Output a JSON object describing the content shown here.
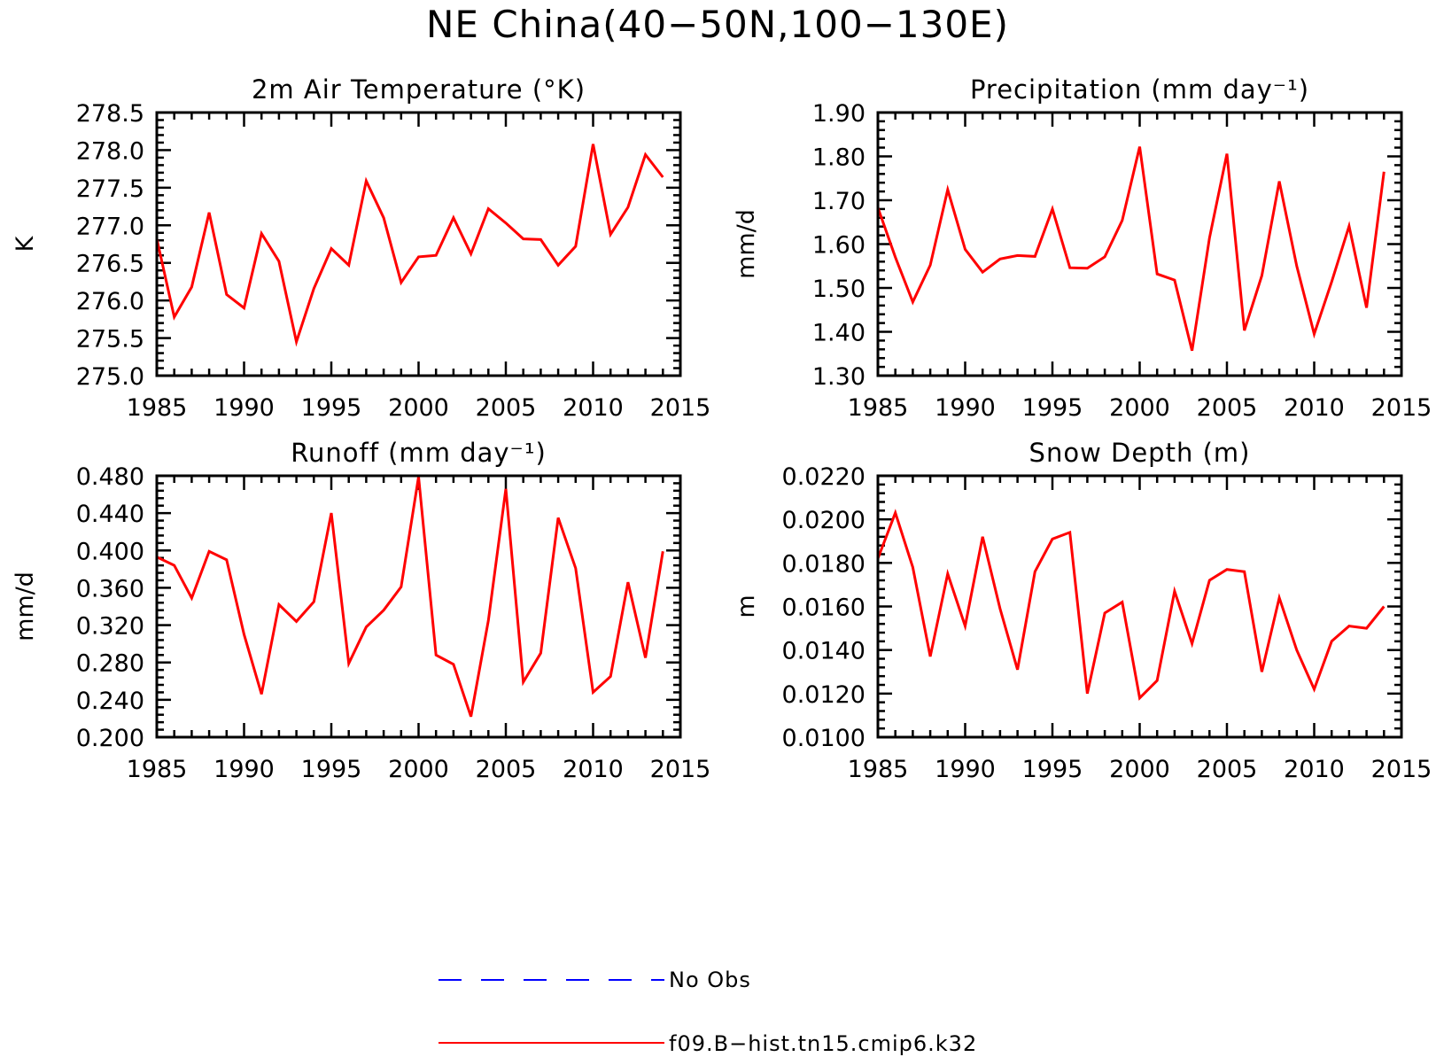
{
  "figure": {
    "title": "NE China(40−50N,100−130E)"
  },
  "legend": [
    {
      "label": "No Obs",
      "color": "#0000ff",
      "style": "dashed"
    },
    {
      "label": "f09.B−hist.tn15.cmip6.k32",
      "color": "#ff0000",
      "style": "solid"
    }
  ],
  "chart_data": [
    {
      "type": "line",
      "title": "2m Air Temperature (°K)",
      "xlabel": "",
      "ylabel": "K",
      "xlim": [
        1985,
        2015
      ],
      "ylim": [
        275.0,
        278.5
      ],
      "xticks": [
        1985,
        1990,
        1995,
        2000,
        2005,
        2010,
        2015
      ],
      "yticks": [
        275.0,
        275.5,
        276.0,
        276.5,
        277.0,
        277.5,
        278.0,
        278.5
      ],
      "ytick_labels": [
        "275.0",
        "275.5",
        "276.0",
        "276.5",
        "277.0",
        "277.5",
        "278.0",
        "278.5"
      ],
      "series": [
        {
          "color": "#ff0000",
          "x": [
            1985,
            1986,
            1987,
            1988,
            1989,
            1990,
            1991,
            1992,
            1993,
            1994,
            1995,
            1996,
            1997,
            1998,
            1999,
            2000,
            2001,
            2002,
            2003,
            2004,
            2005,
            2006,
            2007,
            2008,
            2009,
            2010,
            2011,
            2012,
            2013,
            2014
          ],
          "values": [
            276.82,
            275.78,
            276.18,
            277.17,
            276.08,
            275.9,
            276.89,
            276.52,
            275.45,
            276.16,
            276.69,
            276.47,
            277.59,
            277.1,
            276.24,
            276.58,
            276.6,
            277.1,
            276.62,
            277.22,
            277.03,
            276.82,
            276.81,
            276.47,
            276.72,
            278.08,
            276.88,
            277.24,
            277.94,
            277.64
          ]
        }
      ]
    },
    {
      "type": "line",
      "title": "Precipitation (mm day⁻¹)",
      "xlabel": "",
      "ylabel": "mm/d",
      "xlim": [
        1985,
        2015
      ],
      "ylim": [
        1.3,
        1.9
      ],
      "xticks": [
        1985,
        1990,
        1995,
        2000,
        2005,
        2010,
        2015
      ],
      "yticks": [
        1.3,
        1.4,
        1.5,
        1.6,
        1.7,
        1.8,
        1.9
      ],
      "ytick_labels": [
        "1.30",
        "1.40",
        "1.50",
        "1.60",
        "1.70",
        "1.80",
        "1.90"
      ],
      "series": [
        {
          "color": "#ff0000",
          "x": [
            1985,
            1986,
            1987,
            1988,
            1989,
            1990,
            1991,
            1992,
            1993,
            1994,
            1995,
            1996,
            1997,
            1998,
            1999,
            2000,
            2001,
            2002,
            2003,
            2004,
            2005,
            2006,
            2007,
            2008,
            2009,
            2010,
            2011,
            2012,
            2013,
            2014
          ],
          "values": [
            1.683,
            1.57,
            1.468,
            1.552,
            1.724,
            1.588,
            1.536,
            1.566,
            1.574,
            1.572,
            1.68,
            1.546,
            1.545,
            1.571,
            1.654,
            1.822,
            1.532,
            1.518,
            1.357,
            1.614,
            1.806,
            1.403,
            1.528,
            1.743,
            1.55,
            1.395,
            1.514,
            1.641,
            1.455,
            1.765
          ]
        }
      ]
    },
    {
      "type": "line",
      "title": "Runoff (mm day⁻¹)",
      "xlabel": "",
      "ylabel": "mm/d",
      "xlim": [
        1985,
        2015
      ],
      "ylim": [
        0.2,
        0.48
      ],
      "xticks": [
        1985,
        1990,
        1995,
        2000,
        2005,
        2010,
        2015
      ],
      "yticks": [
        0.2,
        0.24,
        0.28,
        0.32,
        0.36,
        0.4,
        0.44,
        0.48
      ],
      "ytick_labels": [
        "0.200",
        "0.240",
        "0.280",
        "0.320",
        "0.360",
        "0.400",
        "0.440",
        "0.480"
      ],
      "series": [
        {
          "color": "#ff0000",
          "x": [
            1985,
            1986,
            1987,
            1988,
            1989,
            1990,
            1991,
            1992,
            1993,
            1994,
            1995,
            1996,
            1997,
            1998,
            1999,
            2000,
            2001,
            2002,
            2003,
            2004,
            2005,
            2006,
            2007,
            2008,
            2009,
            2010,
            2011,
            2012,
            2013,
            2014
          ],
          "values": [
            0.393,
            0.384,
            0.349,
            0.399,
            0.39,
            0.31,
            0.246,
            0.342,
            0.324,
            0.345,
            0.44,
            0.279,
            0.318,
            0.336,
            0.361,
            0.479,
            0.288,
            0.278,
            0.222,
            0.325,
            0.466,
            0.259,
            0.29,
            0.435,
            0.381,
            0.248,
            0.265,
            0.366,
            0.285,
            0.399
          ]
        }
      ]
    },
    {
      "type": "line",
      "title": "Snow Depth (m)",
      "xlabel": "",
      "ylabel": "m",
      "xlim": [
        1985,
        2015
      ],
      "ylim": [
        0.01,
        0.022
      ],
      "xticks": [
        1985,
        1990,
        1995,
        2000,
        2005,
        2010,
        2015
      ],
      "yticks": [
        0.01,
        0.012,
        0.014,
        0.016,
        0.018,
        0.02,
        0.022
      ],
      "ytick_labels": [
        "0.0100",
        "0.0120",
        "0.0140",
        "0.0160",
        "0.0180",
        "0.0200",
        "0.0220"
      ],
      "series": [
        {
          "color": "#ff0000",
          "x": [
            1985,
            1986,
            1987,
            1988,
            1989,
            1990,
            1991,
            1992,
            1993,
            1994,
            1995,
            1996,
            1997,
            1998,
            1999,
            2000,
            2001,
            2002,
            2003,
            2004,
            2005,
            2006,
            2007,
            2008,
            2009,
            2010,
            2011,
            2012,
            2013,
            2014
          ],
          "values": [
            0.0182,
            0.0203,
            0.0178,
            0.0137,
            0.0175,
            0.0151,
            0.0192,
            0.0159,
            0.0131,
            0.0176,
            0.0191,
            0.0194,
            0.012,
            0.0157,
            0.0162,
            0.0118,
            0.0126,
            0.0167,
            0.0143,
            0.0172,
            0.0177,
            0.0176,
            0.013,
            0.0164,
            0.014,
            0.0122,
            0.0144,
            0.0151,
            0.015,
            0.016
          ]
        }
      ]
    }
  ]
}
